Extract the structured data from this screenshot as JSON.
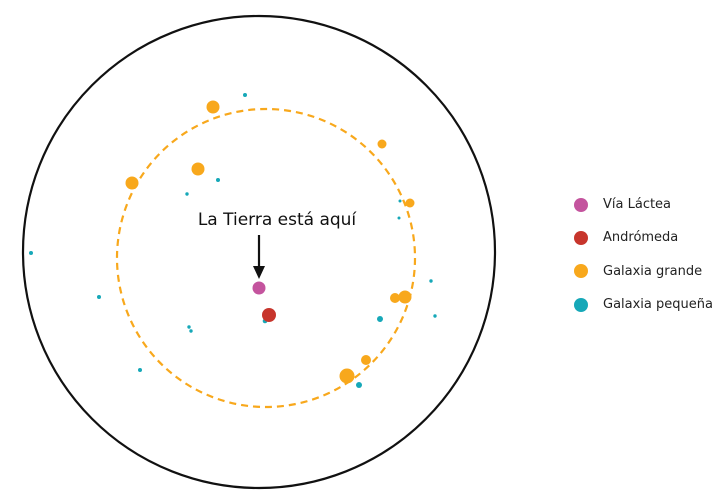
{
  "annotation": {
    "text": "La Tierra está aquí"
  },
  "colors": {
    "milky_way": "#c4549e",
    "andromeda": "#c7352c",
    "large_galaxy": "#f8a81c",
    "small_galaxy": "#16a8b8",
    "outline": "#111111"
  },
  "legend": {
    "items": [
      {
        "label": "Vía Láctea",
        "color": "#c4549e"
      },
      {
        "label": "Andrómeda",
        "color": "#c7352c"
      },
      {
        "label": "Galaxia grande",
        "color": "#f8a81c"
      },
      {
        "label": "Galaxia pequeña",
        "color": "#16a8b8"
      }
    ]
  }
}
